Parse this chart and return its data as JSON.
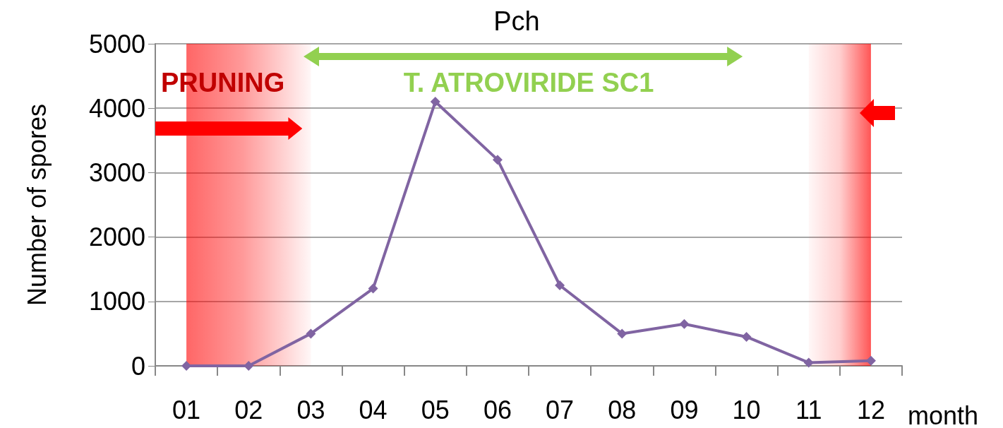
{
  "chart_data": {
    "type": "line",
    "title": "Pch",
    "xlabel": "month",
    "ylabel": "Number of spores",
    "categories": [
      "01",
      "02",
      "03",
      "04",
      "05",
      "06",
      "07",
      "08",
      "09",
      "10",
      "11",
      "12"
    ],
    "series": [
      {
        "color": "#8064a2",
        "values": [
          0,
          0,
          500,
          1200,
          4100,
          3200,
          1250,
          500,
          650,
          450,
          50,
          80
        ]
      }
    ],
    "ylim": [
      0,
      5000
    ],
    "yticks": [
      0,
      1000,
      2000,
      3000,
      4000,
      5000
    ],
    "grid": "y",
    "marker": "diamond",
    "line_style": "solid",
    "bands": [
      {
        "axis": "x",
        "from": "01",
        "to": "03",
        "color": "#ff0000"
      },
      {
        "axis": "x",
        "from": "11",
        "to": "12",
        "color": "#ff0000"
      }
    ],
    "annotations": [
      "PRUNING",
      "T. ATROVIRIDE SC1"
    ]
  }
}
